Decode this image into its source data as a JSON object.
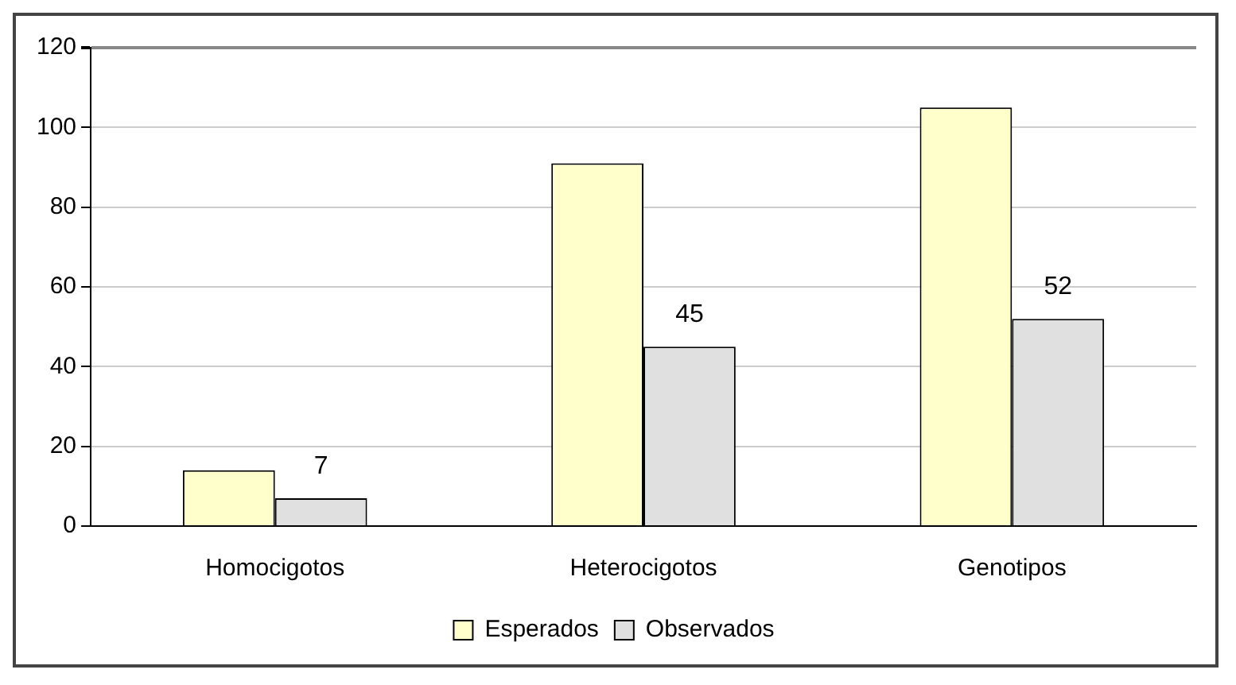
{
  "chart_data": {
    "type": "bar",
    "categories": [
      "Homocigotos",
      "Heterocigotos",
      "Genotipos"
    ],
    "series": [
      {
        "name": "Esperados",
        "color": "#ffffcc",
        "values": [
          14,
          91,
          105
        ]
      },
      {
        "name": "Observados",
        "color": "#e0e0e0",
        "values": [
          7,
          45,
          52
        ],
        "value_labels": [
          "7",
          "45",
          "52"
        ]
      }
    ],
    "ylim": [
      0,
      120
    ],
    "yticks": [
      0,
      20,
      40,
      60,
      80,
      100,
      120
    ],
    "grid": "y",
    "legend": "bottom"
  }
}
